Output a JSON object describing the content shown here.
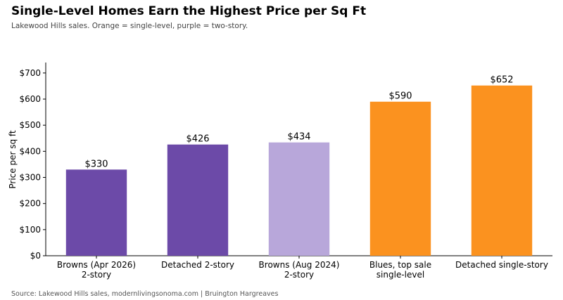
{
  "header": {
    "title": "Single-Level Homes Earn the Highest Price per Sq Ft",
    "subtitle": "Lakewood Hills sales. Orange = single-level, purple = two-story."
  },
  "footer": {
    "source": "Source: Lakewood Hills sales, modernlivingsonoma.com | Bruington Hargreaves"
  },
  "chart_data": {
    "type": "bar",
    "title": "Single-Level Homes Earn the Highest Price per Sq Ft",
    "ylabel": "Price per sq ft",
    "xlabel": "",
    "ylim": [
      0,
      740
    ],
    "yticks": [
      0,
      100,
      200,
      300,
      400,
      500,
      600,
      700
    ],
    "ytick_labels": [
      "$0",
      "$100",
      "$200",
      "$300",
      "$400",
      "$500",
      "$600",
      "$700"
    ],
    "grid": false,
    "categories": [
      [
        "Browns (Apr 2026)",
        "2-story"
      ],
      [
        "Detached 2-story"
      ],
      [
        "Browns (Aug 2024)",
        "2-story"
      ],
      [
        "Blues, top sale",
        "single-level"
      ],
      [
        "Detached single-story"
      ]
    ],
    "values": [
      330,
      426,
      434,
      590,
      652
    ],
    "value_labels": [
      "$330",
      "$426",
      "$434",
      "$590",
      "$652"
    ],
    "colors": [
      "#6c4aa8",
      "#6c4aa8",
      "#b8a7da",
      "#fb921f",
      "#fb921f"
    ]
  }
}
